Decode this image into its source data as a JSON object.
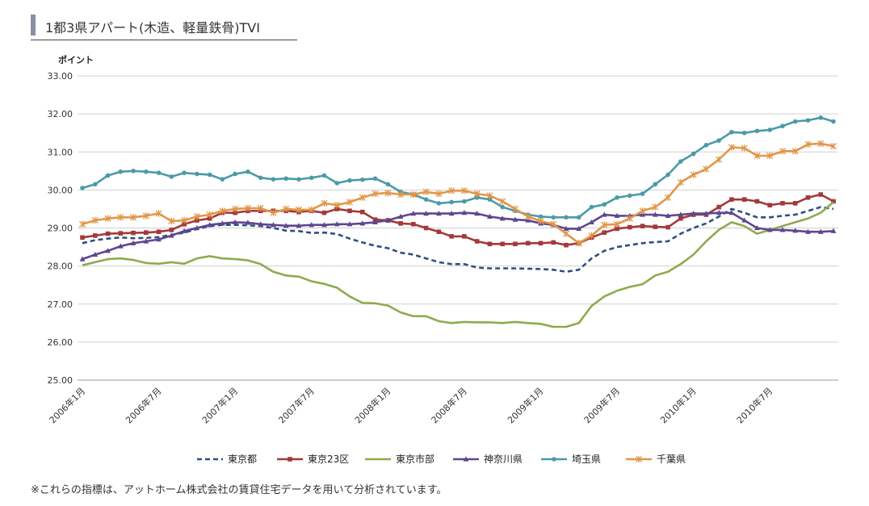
{
  "header": {
    "title": "1都3県アパート(木造、軽量鉄骨)TVI"
  },
  "footnote": "※これらの指標は、アットホーム株式会社の賃貸住宅データを用いて分析されています。",
  "chart_data": {
    "type": "line",
    "ylabel": "ポイント",
    "ylim": [
      25.0,
      33.0
    ],
    "yticks": [
      "25.00",
      "26.00",
      "27.00",
      "28.00",
      "29.00",
      "30.00",
      "31.00",
      "32.00",
      "33.00"
    ],
    "x_tick_labels": [
      "2006年1月",
      "2006年7月",
      "2007年1月",
      "2007年7月",
      "2008年1月",
      "2008年7月",
      "2009年1月",
      "2009年7月",
      "2010年1月",
      "2010年7月"
    ],
    "x_start": "2006-01",
    "grid": true,
    "legend_position": "bottom",
    "series": [
      {
        "name": "東京都",
        "color": "#2f4f7f",
        "style": "dashed",
        "marker": "none",
        "values": [
          28.6,
          28.68,
          28.72,
          28.75,
          28.73,
          28.74,
          28.76,
          28.82,
          28.88,
          28.97,
          29.05,
          29.08,
          29.08,
          29.07,
          29.05,
          29.0,
          28.93,
          28.92,
          28.87,
          28.88,
          28.84,
          28.72,
          28.62,
          28.53,
          28.47,
          28.35,
          28.3,
          28.2,
          28.1,
          28.05,
          28.05,
          27.96,
          27.94,
          27.94,
          27.94,
          27.93,
          27.92,
          27.9,
          27.85,
          27.9,
          28.2,
          28.4,
          28.5,
          28.55,
          28.6,
          28.63,
          28.65,
          28.85,
          29.0,
          29.12,
          29.3,
          29.5,
          29.4,
          29.28,
          29.28,
          29.32,
          29.35,
          29.45,
          29.55,
          29.5
        ]
      },
      {
        "name": "東京23区",
        "color": "#a33a3a",
        "style": "solid",
        "marker": "square",
        "values": [
          28.75,
          28.8,
          28.85,
          28.86,
          28.87,
          28.88,
          28.9,
          28.95,
          29.1,
          29.2,
          29.25,
          29.4,
          29.4,
          29.45,
          29.45,
          29.45,
          29.45,
          29.42,
          29.45,
          29.4,
          29.5,
          29.45,
          29.42,
          29.22,
          29.2,
          29.12,
          29.1,
          29.0,
          28.9,
          28.78,
          28.78,
          28.65,
          28.58,
          28.58,
          28.58,
          28.6,
          28.6,
          28.62,
          28.55,
          28.6,
          28.75,
          28.88,
          28.98,
          29.02,
          29.05,
          29.03,
          29.02,
          29.25,
          29.35,
          29.35,
          29.55,
          29.75,
          29.75,
          29.7,
          29.6,
          29.65,
          29.65,
          29.8,
          29.88,
          29.7
        ]
      },
      {
        "name": "東京市部",
        "color": "#8faa4f",
        "style": "solid",
        "marker": "none",
        "values": [
          28.02,
          28.1,
          28.18,
          28.2,
          28.16,
          28.08,
          28.06,
          28.1,
          28.06,
          28.2,
          28.26,
          28.2,
          28.18,
          28.15,
          28.05,
          27.85,
          27.75,
          27.72,
          27.6,
          27.53,
          27.43,
          27.2,
          27.03,
          27.02,
          26.96,
          26.78,
          26.68,
          26.68,
          26.55,
          26.5,
          26.53,
          26.52,
          26.52,
          26.5,
          26.53,
          26.5,
          26.48,
          26.4,
          26.4,
          26.5,
          26.95,
          27.2,
          27.35,
          27.45,
          27.52,
          27.75,
          27.85,
          28.05,
          28.3,
          28.65,
          28.95,
          29.15,
          29.05,
          28.85,
          28.95,
          29.05,
          29.15,
          29.25,
          29.4,
          29.68
        ]
      },
      {
        "name": "神奈川県",
        "color": "#5e4690",
        "style": "solid",
        "marker": "triangle",
        "values": [
          28.18,
          28.3,
          28.4,
          28.52,
          28.6,
          28.65,
          28.7,
          28.8,
          28.92,
          29.0,
          29.08,
          29.12,
          29.15,
          29.14,
          29.1,
          29.08,
          29.06,
          29.06,
          29.08,
          29.08,
          29.1,
          29.1,
          29.12,
          29.15,
          29.2,
          29.3,
          29.38,
          29.38,
          29.38,
          29.38,
          29.4,
          29.38,
          29.3,
          29.25,
          29.22,
          29.2,
          29.12,
          29.08,
          28.98,
          28.98,
          29.15,
          29.35,
          29.32,
          29.32,
          29.35,
          29.35,
          29.32,
          29.35,
          29.38,
          29.38,
          29.4,
          29.4,
          29.2,
          29.0,
          28.95,
          28.95,
          28.93,
          28.9,
          28.9,
          28.92
        ]
      },
      {
        "name": "埼玉県",
        "color": "#4b9aa8",
        "style": "solid",
        "marker": "circle",
        "values": [
          30.05,
          30.15,
          30.38,
          30.48,
          30.5,
          30.48,
          30.45,
          30.35,
          30.45,
          30.42,
          30.4,
          30.28,
          30.42,
          30.48,
          30.32,
          30.28,
          30.3,
          30.28,
          30.32,
          30.38,
          30.18,
          30.25,
          30.27,
          30.3,
          30.15,
          29.95,
          29.88,
          29.75,
          29.65,
          29.68,
          29.7,
          29.8,
          29.75,
          29.55,
          29.45,
          29.35,
          29.3,
          29.28,
          29.28,
          29.28,
          29.55,
          29.62,
          29.8,
          29.85,
          29.9,
          30.15,
          30.4,
          30.75,
          30.95,
          31.18,
          31.3,
          31.52,
          31.5,
          31.55,
          31.58,
          31.68,
          31.8,
          31.83,
          31.9,
          31.8
        ]
      },
      {
        "name": "千葉県",
        "color": "#e1974a",
        "style": "solid",
        "marker": "star",
        "values": [
          29.1,
          29.2,
          29.25,
          29.28,
          29.28,
          29.32,
          29.38,
          29.18,
          29.2,
          29.3,
          29.35,
          29.45,
          29.5,
          29.52,
          29.52,
          29.4,
          29.5,
          29.48,
          29.48,
          29.65,
          29.6,
          29.68,
          29.8,
          29.9,
          29.92,
          29.88,
          29.88,
          29.95,
          29.9,
          29.98,
          29.98,
          29.9,
          29.85,
          29.7,
          29.5,
          29.3,
          29.18,
          29.1,
          28.85,
          28.6,
          28.8,
          29.08,
          29.1,
          29.25,
          29.45,
          29.55,
          29.8,
          30.2,
          30.4,
          30.55,
          30.8,
          31.12,
          31.1,
          30.9,
          30.9,
          31.02,
          31.02,
          31.2,
          31.22,
          31.15
        ]
      }
    ]
  }
}
